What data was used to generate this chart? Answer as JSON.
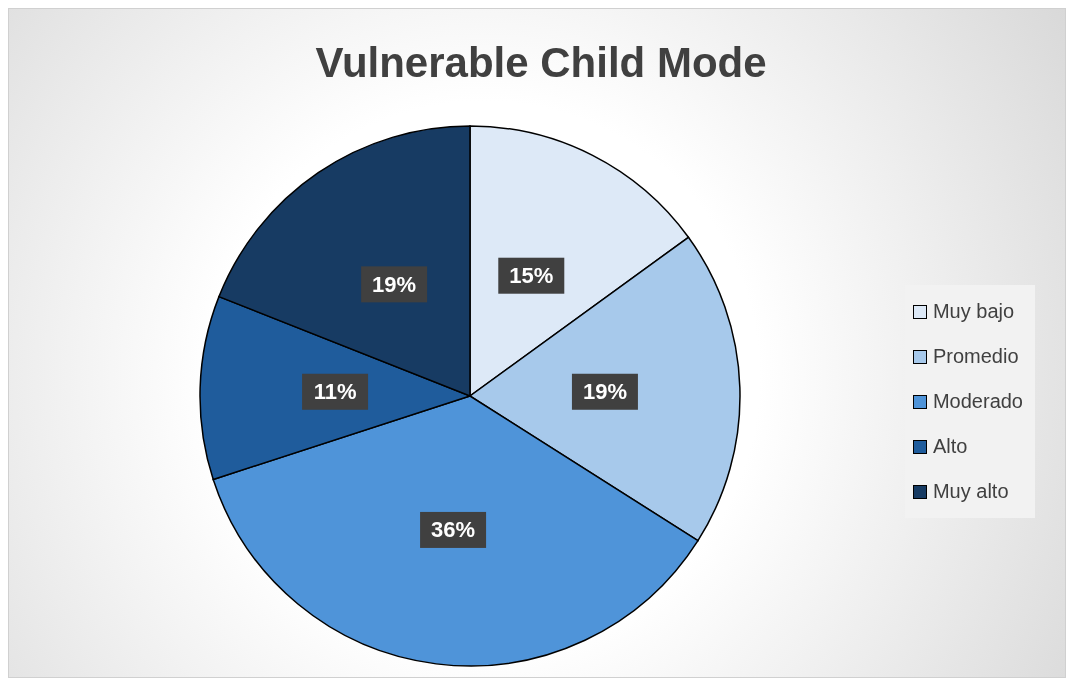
{
  "chart_data": {
    "type": "pie",
    "title": "Vulnerable Child Mode",
    "categories": [
      "Muy bajo",
      "Promedio",
      "Moderado",
      "Alto",
      "Muy alto"
    ],
    "values": [
      15,
      19,
      36,
      11,
      19
    ],
    "colors": [
      "#dde9f7",
      "#a7c9eb",
      "#4f94d9",
      "#1f5c9c",
      "#173b63"
    ],
    "value_labels": [
      "15%",
      "19%",
      "36%",
      "11%",
      "19%"
    ],
    "legend": "right"
  }
}
